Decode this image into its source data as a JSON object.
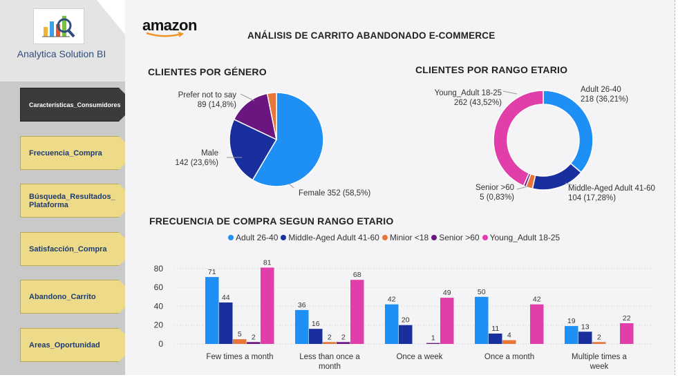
{
  "sidebar": {
    "brand": "Analytica Solution BI",
    "items": [
      {
        "label": "Características_Consumidores",
        "active": true
      },
      {
        "label": "Frecuencia_Compra",
        "active": false
      },
      {
        "label": "Búsqueda_Resultados_ Plataforma",
        "active": false
      },
      {
        "label": "Satisfacción_Compra",
        "active": false
      },
      {
        "label": "Abandono_Carrito",
        "active": false
      },
      {
        "label": "Areas_Oportunidad",
        "active": false
      }
    ]
  },
  "header": {
    "amazon_logo": "amazon",
    "title": "ANÁLISIS DE CARRITO ABANDONADO E-COMMERCE"
  },
  "gender_chart": {
    "title": "CLIENTES POR GÉNERO",
    "labels": {
      "prefer": [
        "Prefer not to say",
        "89 (14,8%)"
      ],
      "male": [
        "Male",
        "142 (23,6%)"
      ],
      "female": "Female 352 (58,5%)"
    }
  },
  "age_chart": {
    "title": "CLIENTES POR RANGO ETARIO",
    "labels": {
      "young": [
        "Young_Adult 18-25",
        "262 (43,52%)"
      ],
      "adult": [
        "Adult 26-40",
        "218 (36,21%)"
      ],
      "senior": [
        "Senior >60",
        "5 (0,83%)"
      ],
      "middle": [
        "Middle-Aged Adult 41-60",
        "104 (17,28%)"
      ]
    }
  },
  "freq_chart": {
    "title": "FRECUENCIA DE COMPRA SEGUN RANGO ETARIO"
  },
  "colors": {
    "adult": "#1e8ff5",
    "middle": "#1a2f9e",
    "minor": "#e8763a",
    "senior": "#6a1580",
    "young": "#e23ea9",
    "prefer": "#e8763a"
  },
  "chart_data": [
    {
      "type": "pie",
      "title": "CLIENTES POR GÉNERO",
      "slices": [
        {
          "name": "Female",
          "value": 352,
          "percent": 58.5,
          "color": "#1e8ff5"
        },
        {
          "name": "Male",
          "value": 142,
          "percent": 23.6,
          "color": "#1a2f9e"
        },
        {
          "name": "Prefer not to say",
          "value": 89,
          "percent": 14.8,
          "color": "#6a1580"
        },
        {
          "name": "",
          "value": 19,
          "percent": 3.1,
          "color": "#e8763a"
        }
      ]
    },
    {
      "type": "pie",
      "title": "CLIENTES POR RANGO ETARIO",
      "donut": true,
      "slices": [
        {
          "name": "Adult 26-40",
          "value": 218,
          "percent": 36.21,
          "color": "#1e8ff5"
        },
        {
          "name": "Middle-Aged Adult 41-60",
          "value": 104,
          "percent": 17.28,
          "color": "#1a2f9e"
        },
        {
          "name": "Minior <18",
          "value": 13,
          "percent": 2.16,
          "color": "#e8763a"
        },
        {
          "name": "Senior >60",
          "value": 5,
          "percent": 0.83,
          "color": "#6a1580"
        },
        {
          "name": "Young_Adult 18-25",
          "value": 262,
          "percent": 43.52,
          "color": "#e23ea9"
        }
      ]
    },
    {
      "type": "bar",
      "title": "FRECUENCIA DE COMPRA SEGUN RANGO ETARIO",
      "categories": [
        "Few times a month",
        "Less than once a month",
        "Once a week",
        "Once a month",
        "Multiple times a week"
      ],
      "series": [
        {
          "name": "Adult 26-40",
          "color": "#1e8ff5",
          "values": [
            71,
            36,
            42,
            50,
            19
          ]
        },
        {
          "name": "Middle-Aged Adult 41-60",
          "color": "#1a2f9e",
          "values": [
            44,
            16,
            20,
            11,
            13
          ]
        },
        {
          "name": "Minior <18",
          "color": "#e8763a",
          "values": [
            5,
            2,
            0,
            4,
            2
          ]
        },
        {
          "name": "Senior >60",
          "color": "#6a1580",
          "values": [
            2,
            2,
            1,
            0,
            0
          ]
        },
        {
          "name": "Young_Adult 18-25",
          "color": "#e23ea9",
          "values": [
            81,
            68,
            49,
            42,
            22
          ]
        }
      ],
      "data_labels": [
        [
          "71",
          "44",
          "5",
          "2",
          "81"
        ],
        [
          "36",
          "16",
          "2",
          "2",
          "68"
        ],
        [
          "42",
          "20",
          "",
          "1",
          "49"
        ],
        [
          "50",
          "11",
          "4",
          "",
          "42"
        ],
        [
          "19",
          "13",
          "2",
          "",
          "22"
        ]
      ],
      "yticks": [
        "0",
        "20",
        "40",
        "60",
        "80"
      ],
      "ylim": [
        0,
        85
      ],
      "legend": "top",
      "grid": true
    }
  ]
}
